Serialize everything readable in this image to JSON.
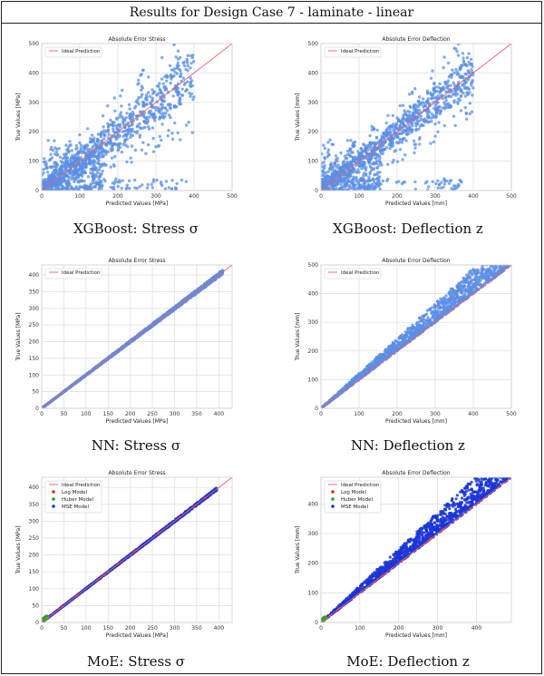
{
  "header": {
    "title": "Results for Design Case 7 - laminate - linear"
  },
  "colors": {
    "ideal": "#e8606a",
    "points": "#5b8fe6",
    "log": "#e0301e",
    "huber": "#2ca02c",
    "mse": "#1a35d8"
  },
  "captions": {
    "xgb_stress": "XGBoost: Stress σ",
    "xgb_defl": "XGBoost: Deflection z",
    "nn_stress": "NN: Stress σ",
    "nn_defl": "NN: Deflection z",
    "moe_stress": "MoE: Stress σ",
    "moe_defl": "MoE: Deflection z"
  },
  "chart_data": [
    {
      "id": "xgb_stress",
      "type": "scatter",
      "title": "Absolute Error Stress",
      "xlabel": "Predicted Values [MPa]",
      "ylabel": "True Values [MPa]",
      "xlim": [
        0,
        500
      ],
      "ylim": [
        0,
        500
      ],
      "xticks": [
        0,
        100,
        200,
        300,
        400,
        500
      ],
      "yticks": [
        0,
        100,
        200,
        300,
        400,
        500
      ],
      "legend": [
        "Ideal Prediction"
      ],
      "legend_position": "top-left",
      "spread": 0.32,
      "outliers": true,
      "grid": true
    },
    {
      "id": "xgb_defl",
      "type": "scatter",
      "title": "Absolute Error Deflection",
      "xlabel": "Predicted Values [mm]",
      "ylabel": "True Values [mm]",
      "xlim": [
        0,
        500
      ],
      "ylim": [
        0,
        500
      ],
      "xticks": [
        0,
        100,
        200,
        300,
        400,
        500
      ],
      "yticks": [
        0,
        100,
        200,
        300,
        400,
        500
      ],
      "legend": [
        "Ideal Prediction"
      ],
      "legend_position": "top-left",
      "spread": 0.22,
      "outliers": true,
      "grid": true
    },
    {
      "id": "nn_stress",
      "type": "scatter",
      "title": "Absolute Error Stress",
      "xlabel": "Predicted Values [MPa]",
      "ylabel": "True Values [MPa]",
      "xlim": [
        0,
        430
      ],
      "ylim": [
        0,
        430
      ],
      "xticks": [
        0,
        50,
        100,
        150,
        200,
        250,
        300,
        350,
        400
      ],
      "yticks": [
        0,
        50,
        100,
        150,
        200,
        250,
        300,
        350,
        400
      ],
      "legend": [
        "Ideal Prediction"
      ],
      "legend_position": "top-left",
      "spread": 0.03,
      "max": 410,
      "grid": true
    },
    {
      "id": "nn_defl",
      "type": "scatter",
      "title": "Absolute Error Deflection",
      "xlabel": "Predicted Values [mm]",
      "ylabel": "True Values [mm]",
      "xlim": [
        0,
        500
      ],
      "ylim": [
        0,
        500
      ],
      "xticks": [
        0,
        100,
        200,
        300,
        400,
        500
      ],
      "yticks": [
        0,
        100,
        200,
        300,
        400,
        500
      ],
      "legend": [
        "Ideal Prediction"
      ],
      "legend_position": "top-left",
      "spread": 0.22,
      "upper_only": true,
      "grid": true
    },
    {
      "id": "moe_stress",
      "type": "scatter",
      "title": "Absolute Error Stress",
      "xlabel": "Predicted Values [MPa]",
      "ylabel": "True Values [MPa]",
      "xlim": [
        0,
        430
      ],
      "ylim": [
        0,
        430
      ],
      "xticks": [
        0,
        50,
        100,
        150,
        200,
        250,
        300,
        350,
        400
      ],
      "yticks": [
        0,
        50,
        100,
        150,
        200,
        250,
        300,
        350,
        400
      ],
      "legend": [
        "Ideal Prediction",
        "Log Model",
        "Huber Model",
        "MSE Model"
      ],
      "legend_position": "top-left",
      "spread": 0.02,
      "max": 395,
      "grid": true,
      "moe": true
    },
    {
      "id": "moe_defl",
      "type": "scatter",
      "title": "Absolute Error Deflection",
      "xlabel": "Predicted Values [mm]",
      "ylabel": "True Values [mm]",
      "xlim": [
        0,
        490
      ],
      "ylim": [
        0,
        490
      ],
      "xticks": [
        0,
        100,
        200,
        300,
        400
      ],
      "yticks": [
        0,
        100,
        200,
        300,
        400
      ],
      "legend": [
        "Ideal Prediction",
        "Log Model",
        "Huber Model",
        "MSE Model"
      ],
      "legend_position": "top-left",
      "spread": 0.24,
      "upper_only": true,
      "grid": true,
      "moe": true
    }
  ]
}
